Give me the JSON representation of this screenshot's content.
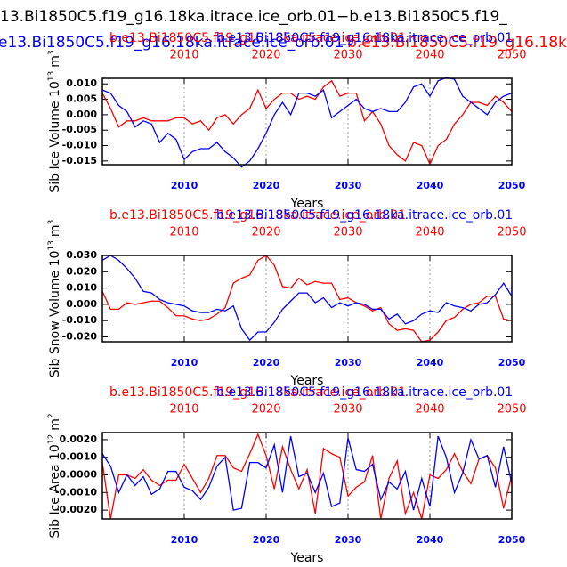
{
  "header": {
    "line1": "13.Bi1850C5.f19_g16.18ka.itrace.ice_orb.01−b.e13.Bi1850C5.f19_",
    "line2_blue": "e13.Bi1850C5.f19_g16.18ka.itrace.ice_orb.01",
    "line2_red": "b.e13.Bi1850C5.f19_g16.18ka.itrace"
  },
  "chart_data": [
    {
      "type": "line",
      "title_left": "b.e13.Bi1850C5.f19_g16.18ka.itrace.ice_orb.01",
      "title_right": "b.e13.Bi1850C5.f19_g16.18ka.itrace.ice_orb.01",
      "ylabel": "Sib Ice Volume 10",
      "ylabel_exp": "13",
      "ylabel_unit": "m",
      "ylabel_unit_exp": "3",
      "xlabel": "Years",
      "grid": true,
      "x": [
        2000,
        2001,
        2002,
        2003,
        2004,
        2005,
        2006,
        2007,
        2008,
        2009,
        2010,
        2011,
        2012,
        2013,
        2014,
        2015,
        2016,
        2017,
        2018,
        2019,
        2020,
        2021,
        2022,
        2023,
        2024,
        2025,
        2026,
        2027,
        2028,
        2029,
        2030,
        2031,
        2032,
        2033,
        2034,
        2035,
        2036,
        2037,
        2038,
        2039,
        2040,
        2041,
        2042,
        2043,
        2044,
        2045,
        2046,
        2047,
        2048,
        2049,
        2050
      ],
      "xlim": [
        2000,
        2050
      ],
      "xticks": [
        2010,
        2020,
        2030,
        2040,
        2050
      ],
      "ylim": [
        -0.0162,
        0.0118
      ],
      "yticks": [
        {
          "value": 0.01,
          "label": "0.010"
        },
        {
          "value": 0.005,
          "label": "0.005"
        },
        {
          "value": 0,
          "label": "0.000"
        },
        {
          "value": -0.005,
          "label": "-0.005"
        },
        {
          "value": -0.01,
          "label": "-0.010"
        },
        {
          "value": -0.015,
          "label": "-0.015"
        }
      ],
      "series": [
        {
          "name": "b.e13.Bi1850C5.f19_g16.18ka.itrace.ice_orb.01",
          "color": "#ff0000",
          "values": [
            0.007,
            0.002,
            -0.004,
            -0.002,
            -0.002,
            -0.001,
            -0.002,
            -0.002,
            -0.002,
            -0.001,
            -0.001,
            -0.003,
            -0.002,
            -0.005,
            -0.001,
            0.0,
            -0.003,
            0.0,
            0.002,
            0.008,
            0.002,
            0.005,
            0.007,
            0.007,
            0.005,
            0.006,
            0.005,
            0.009,
            0.011,
            0.006,
            0.007,
            0.007,
            -0.002,
            0.001,
            -0.003,
            -0.01,
            -0.013,
            -0.015,
            -0.009,
            -0.01,
            -0.016,
            -0.01,
            -0.008,
            -0.003,
            0.0,
            0.004,
            0.004,
            0.003,
            0.006,
            0.004,
            0.001
          ]
        },
        {
          "name": "b.e13.Bi1850C5.f19_g16.18ka.itrace.ice_orb.01",
          "color": "#0000ff",
          "values": [
            0.008,
            0.007,
            0.003,
            0.001,
            -0.004,
            -0.002,
            -0.003,
            -0.009,
            -0.006,
            -0.008,
            -0.0145,
            -0.012,
            -0.011,
            -0.011,
            -0.009,
            -0.012,
            -0.014,
            -0.017,
            -0.015,
            -0.011,
            -0.006,
            0.0,
            0.004,
            0.0,
            0.007,
            0.007,
            0.006,
            0.008,
            -0.001,
            0.001,
            0.003,
            0.005,
            0.002,
            0.001,
            0.002,
            0.001,
            0.001,
            0.004,
            0.009,
            0.01,
            0.006,
            0.011,
            0.012,
            0.0115,
            0.006,
            0.004,
            0.002,
            0.0,
            0.004,
            0.006,
            0.007
          ]
        }
      ]
    },
    {
      "type": "line",
      "title_left": "b.e13.Bi1850C5.f19_g16.18ka.itrace.ice_orb.01",
      "title_right": "b.e13.Bi1850C5.f19_g16.18ka.itrace.ice_orb.01",
      "ylabel": "Sib Snow Volume 10",
      "ylabel_exp": "13",
      "ylabel_unit": "m",
      "ylabel_unit_exp": "3",
      "xlabel": "Years",
      "grid": true,
      "x": [
        2000,
        2001,
        2002,
        2003,
        2004,
        2005,
        2006,
        2007,
        2008,
        2009,
        2010,
        2011,
        2012,
        2013,
        2014,
        2015,
        2016,
        2017,
        2018,
        2019,
        2020,
        2021,
        2022,
        2023,
        2024,
        2025,
        2026,
        2027,
        2028,
        2029,
        2030,
        2031,
        2032,
        2033,
        2034,
        2035,
        2036,
        2037,
        2038,
        2039,
        2040,
        2041,
        2042,
        2043,
        2044,
        2045,
        2046,
        2047,
        2048,
        2049,
        2050
      ],
      "xlim": [
        2000,
        2050
      ],
      "xticks": [
        2010,
        2020,
        2030,
        2040,
        2050
      ],
      "ylim": [
        -0.023,
        0.03
      ],
      "yticks": [
        {
          "value": 0.03,
          "label": "0.030"
        },
        {
          "value": 0.02,
          "label": "0.020"
        },
        {
          "value": 0.01,
          "label": "0.010"
        },
        {
          "value": 0,
          "label": "0.000"
        },
        {
          "value": -0.01,
          "label": "-0.010"
        },
        {
          "value": -0.02,
          "label": "-0.020"
        }
      ],
      "series": [
        {
          "name": "b.e13.Bi1850C5.f19_g16.18ka.itrace.ice_orb.01",
          "color": "#ff0000",
          "values": [
            0.008,
            -0.003,
            -0.003,
            0.001,
            0.0,
            0.001,
            0.002,
            0.002,
            -0.002,
            -0.007,
            -0.007,
            -0.009,
            -0.01,
            -0.009,
            -0.006,
            -0.002,
            0.013,
            0.016,
            0.018,
            0.027,
            0.03,
            0.024,
            0.011,
            0.01,
            0.016,
            0.012,
            0.014,
            0.013,
            0.013,
            0.003,
            0.004,
            0.001,
            -0.001,
            -0.004,
            -0.002,
            -0.012,
            -0.016,
            -0.015,
            -0.016,
            -0.023,
            -0.022,
            -0.017,
            -0.01,
            -0.008,
            -0.003,
            0.0,
            0.001,
            0.005,
            0.005,
            -0.009,
            -0.01
          ]
        },
        {
          "name": "b.e13.Bi1850C5.f19_g16.18ka.itrace.ice_orb.01",
          "color": "#0000ff",
          "values": [
            0.027,
            0.03,
            0.027,
            0.022,
            0.016,
            0.008,
            0.007,
            0.003,
            0.001,
            0.0,
            -0.001,
            -0.004,
            -0.005,
            -0.005,
            -0.003,
            -0.004,
            -0.001,
            -0.015,
            -0.022,
            -0.017,
            -0.017,
            -0.011,
            -0.003,
            0.002,
            0.007,
            0.007,
            0.001,
            0.004,
            -0.002,
            0.001,
            -0.001,
            0.001,
            0.0,
            -0.003,
            -0.003,
            -0.009,
            -0.006,
            -0.012,
            -0.01,
            -0.006,
            -0.004,
            -0.005,
            0.001,
            -0.001,
            -0.002,
            -0.004,
            0.0,
            0.001,
            0.006,
            0.013,
            0.005
          ]
        }
      ]
    },
    {
      "type": "line",
      "title_left": "b.e13.Bi1850C5.f19_g16.18ka.itrace.ice_orb.01",
      "title_right": "b.e13.Bi1850C5.f19_g16.18ka.itrace.ice_orb.01",
      "ylabel": "Sib Ice Area 10",
      "ylabel_exp": "12",
      "ylabel_unit": "m",
      "ylabel_unit_exp": "2",
      "xlabel": "Years",
      "grid": true,
      "x": [
        2000,
        2001,
        2002,
        2003,
        2004,
        2005,
        2006,
        2007,
        2008,
        2009,
        2010,
        2011,
        2012,
        2013,
        2014,
        2015,
        2016,
        2017,
        2018,
        2019,
        2020,
        2021,
        2022,
        2023,
        2024,
        2025,
        2026,
        2027,
        2028,
        2029,
        2030,
        2031,
        2032,
        2033,
        2034,
        2035,
        2036,
        2037,
        2038,
        2039,
        2040,
        2041,
        2042,
        2043,
        2044,
        2045,
        2046,
        2047,
        2048,
        2049,
        2050
      ],
      "xlim": [
        2000,
        2050
      ],
      "xticks": [
        2010,
        2020,
        2030,
        2040,
        2050
      ],
      "ylim": [
        -0.0025,
        0.0024
      ],
      "yticks": [
        {
          "value": 0.002,
          "label": "0.0020"
        },
        {
          "value": 0.001,
          "label": "0.0010"
        },
        {
          "value": 0,
          "label": "0.0000"
        },
        {
          "value": -0.001,
          "label": "-0.0010"
        },
        {
          "value": -0.002,
          "label": "-0.0020"
        }
      ],
      "series": [
        {
          "name": "b.e13.Bi1850C5.f19_g16.18ka.itrace.ice_orb.01",
          "color": "#ff0000",
          "values": [
            0.0007,
            -0.0025,
            0.0,
            0.0,
            -0.0002,
            0.0003,
            -0.0003,
            -0.0006,
            -0.0003,
            -0.0003,
            0.0006,
            -0.0002,
            -0.001,
            -0.0002,
            0.0011,
            0.0011,
            0.0004,
            0.0002,
            0.0012,
            0.0023,
            0.0011,
            -0.0008,
            0.0016,
            0.0003,
            -0.0008,
            0.0003,
            -0.0022,
            0.0015,
            0.0012,
            0.001,
            -0.0012,
            -0.0007,
            -0.0004,
            0.0011,
            -0.0025,
            -0.0002,
            0.0008,
            -0.0022,
            -0.001,
            -0.0025,
            0.0,
            -0.0002,
            0.0003,
            0.0012,
            0.0002,
            -0.0005,
            0.0009,
            0.0011,
            0.0004,
            -0.0019,
            0.0
          ]
        },
        {
          "name": "b.e13.Bi1850C5.f19_g16.18ka.itrace.ice_orb.01",
          "color": "#0000ff",
          "values": [
            0.0012,
            0.0005,
            -0.001,
            0.0,
            -0.0006,
            -0.0001,
            -0.0011,
            -0.0008,
            0.0002,
            0.0002,
            -0.0007,
            -0.0009,
            -0.0014,
            -0.0007,
            0.0005,
            0.001,
            -0.002,
            -0.0019,
            0.0007,
            0.0007,
            0.0004,
            0.0017,
            -0.001,
            0.0022,
            -0.0001,
            0.0001,
            -0.001,
            0.0001,
            -0.0018,
            -0.0016,
            0.0021,
            0.0003,
            0.0002,
            0.0006,
            -0.0014,
            -0.0004,
            -0.0008,
            0.0002,
            -0.002,
            -0.0002,
            -0.0018,
            0.0022,
            0.001,
            -0.001,
            0.0001,
            0.002,
            0.0009,
            0.0011,
            -0.0007,
            0.0016,
            -0.0005
          ]
        }
      ]
    }
  ]
}
